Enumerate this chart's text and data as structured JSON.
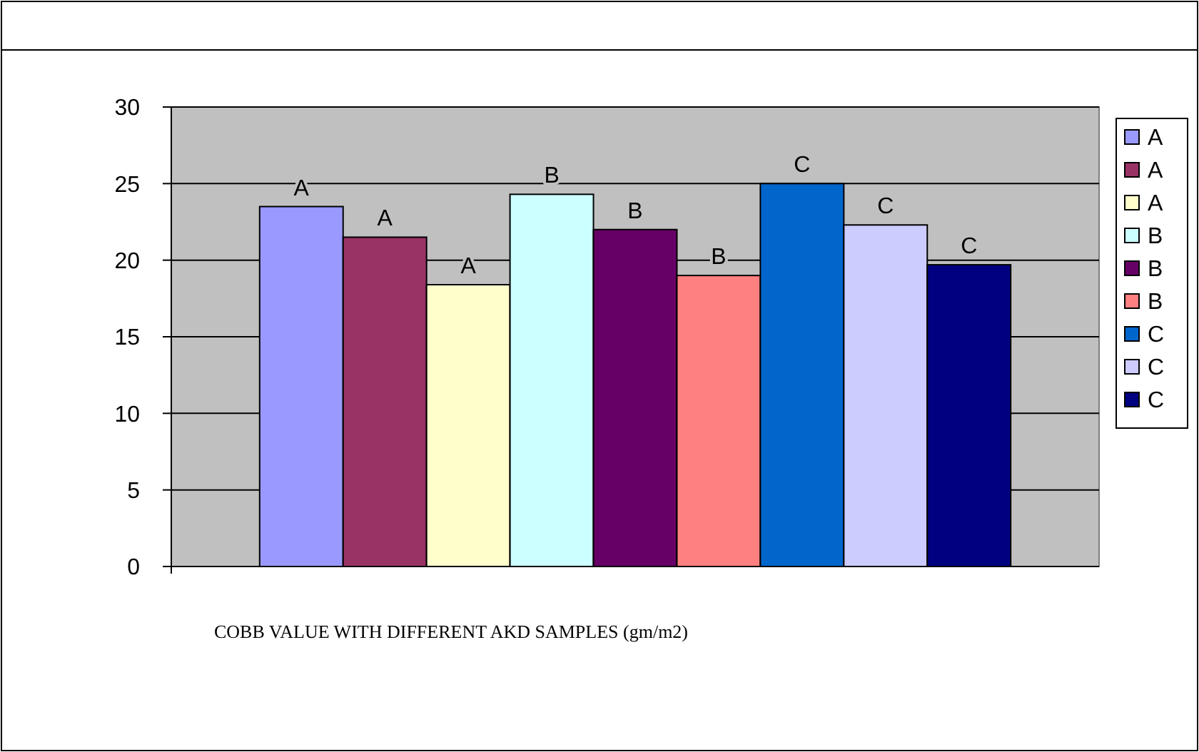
{
  "chart_data": {
    "type": "bar",
    "xlabel": "COBB VALUE WITH DIFFERENT AKD  SAMPLES (gm/m2)",
    "categories": [
      null
    ],
    "series": [
      {
        "name": "A",
        "color": "#9999ff",
        "values": [
          23.5
        ],
        "value_labels": [
          "A"
        ]
      },
      {
        "name": "A",
        "color": "#993366",
        "values": [
          21.5
        ],
        "value_labels": [
          "A"
        ]
      },
      {
        "name": "A",
        "color": "#ffffcc",
        "values": [
          18.4
        ],
        "value_labels": [
          "A"
        ]
      },
      {
        "name": "B",
        "color": "#ccffff",
        "values": [
          24.3
        ],
        "value_labels": [
          "B"
        ]
      },
      {
        "name": "B",
        "color": "#660066",
        "values": [
          22.0
        ],
        "value_labels": [
          "B"
        ]
      },
      {
        "name": "B",
        "color": "#ff8080",
        "values": [
          19.0
        ],
        "value_labels": [
          "B"
        ]
      },
      {
        "name": "C",
        "color": "#0066cc",
        "values": [
          25.0
        ],
        "value_labels": [
          "C"
        ]
      },
      {
        "name": "C",
        "color": "#ccccff",
        "values": [
          22.3
        ],
        "value_labels": [
          "C"
        ]
      },
      {
        "name": "C",
        "color": "#000080",
        "values": [
          19.7
        ],
        "value_labels": [
          "C"
        ]
      }
    ],
    "ylim": [
      0,
      30
    ],
    "yticks": [
      0,
      5,
      10,
      15,
      20,
      25,
      30
    ],
    "grid": "y",
    "legend": "right"
  }
}
